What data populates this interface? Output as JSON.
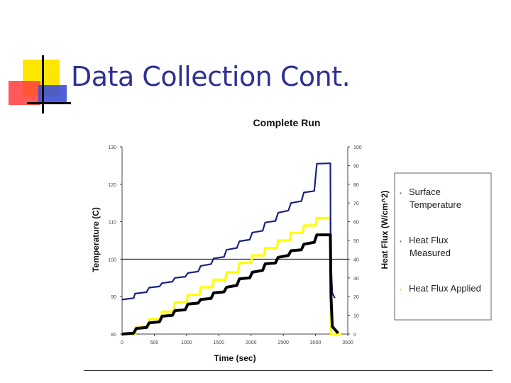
{
  "slide": {
    "title": "Data Collection Cont."
  },
  "colors": {
    "title": "#2e3192",
    "surface_temperature": "#1a237e",
    "heat_flux_measured": "#000000",
    "heat_flux_applied": "#ffff00"
  },
  "chart_data": {
    "type": "line",
    "title": "Complete Run",
    "xlabel": "Time (sec)",
    "ylabel": "Temperature (C)",
    "y2label": "Heat Flux (W/cm^2)",
    "xlim": [
      0,
      3500
    ],
    "ylim": [
      80,
      130
    ],
    "y2lim": [
      0,
      100
    ],
    "x_ticks": [
      "0",
      "500",
      "1000",
      "1500",
      "2000",
      "2500",
      "3000",
      "3500"
    ],
    "y_ticks": [
      "80",
      "90",
      "100",
      "110",
      "120",
      "130"
    ],
    "y2_ticks": [
      "0",
      "10",
      "20",
      "30",
      "40",
      "50",
      "60",
      "70",
      "80",
      "90",
      "100"
    ],
    "grid": false,
    "reference_line": {
      "axis": "y",
      "value": 100
    },
    "legend": {
      "placement": "right",
      "entries": [
        {
          "label_lines": [
            "Surface",
            "Temperature"
          ],
          "series": "surface_temperature"
        },
        {
          "label_lines": [
            "Heat Flux",
            "Measured"
          ],
          "series": "heat_flux_measured"
        },
        {
          "label_lines": [
            "Heat Flux Applied"
          ],
          "series": "heat_flux_applied"
        }
      ]
    },
    "series": [
      {
        "name": "Surface Temperature",
        "key": "surface_temperature",
        "axis": "left",
        "x": [
          0,
          180,
          200,
          380,
          420,
          580,
          620,
          780,
          820,
          980,
          1020,
          1180,
          1220,
          1380,
          1420,
          1580,
          1620,
          1780,
          1820,
          1980,
          2020,
          2180,
          2220,
          2380,
          2420,
          2580,
          2620,
          2780,
          2820,
          2980,
          3020,
          3230,
          3235,
          3260,
          3300
        ],
        "y": [
          89.2,
          89.6,
          90.8,
          91.2,
          92.4,
          92.7,
          93.6,
          94.0,
          95.0,
          95.3,
          96.3,
          96.7,
          98.2,
          98.7,
          100.2,
          100.6,
          102.5,
          103.0,
          104.8,
          105.2,
          107.1,
          107.6,
          109.8,
          110.2,
          112.4,
          113.0,
          115.0,
          115.5,
          117.8,
          118.2,
          125.5,
          125.6,
          100.0,
          91.0,
          89.6
        ]
      },
      {
        "name": "Heat Flux Measured",
        "key": "heat_flux_measured",
        "axis": "right",
        "x": [
          0,
          180,
          220,
          380,
          420,
          580,
          620,
          780,
          820,
          980,
          1020,
          1180,
          1220,
          1380,
          1420,
          1580,
          1620,
          1780,
          1820,
          1980,
          2020,
          2180,
          2220,
          2380,
          2420,
          2580,
          2620,
          2780,
          2820,
          2980,
          3020,
          3230,
          3240,
          3260,
          3350
        ],
        "y": [
          0,
          0.5,
          3.0,
          3.5,
          6.0,
          6.5,
          9.5,
          10.0,
          12.5,
          13.0,
          16.0,
          16.5,
          18.5,
          19.0,
          22.0,
          22.5,
          25.0,
          26.0,
          29.5,
          30.0,
          33.0,
          34.0,
          37.5,
          38.0,
          41.0,
          42.0,
          44.5,
          45.0,
          48.0,
          49.0,
          53.0,
          53.0,
          20.0,
          4.0,
          0.5
        ]
      },
      {
        "name": "Heat Flux Applied",
        "key": "heat_flux_applied",
        "axis": "right",
        "x": [
          0,
          200,
          220,
          400,
          420,
          600,
          620,
          800,
          820,
          1000,
          1020,
          1200,
          1220,
          1400,
          1420,
          1600,
          1620,
          1800,
          1820,
          2000,
          2020,
          2200,
          2220,
          2400,
          2420,
          2600,
          2620,
          2800,
          2820,
          3000,
          3020,
          3230,
          3240,
          3400
        ],
        "y": [
          0,
          0,
          4,
          4,
          8,
          8,
          12,
          12,
          17,
          17,
          21,
          21,
          25,
          25,
          29,
          29,
          33,
          33,
          38,
          38,
          42,
          42,
          46,
          46,
          50,
          50,
          54,
          54,
          58,
          58,
          62,
          62,
          0,
          0
        ]
      }
    ]
  }
}
